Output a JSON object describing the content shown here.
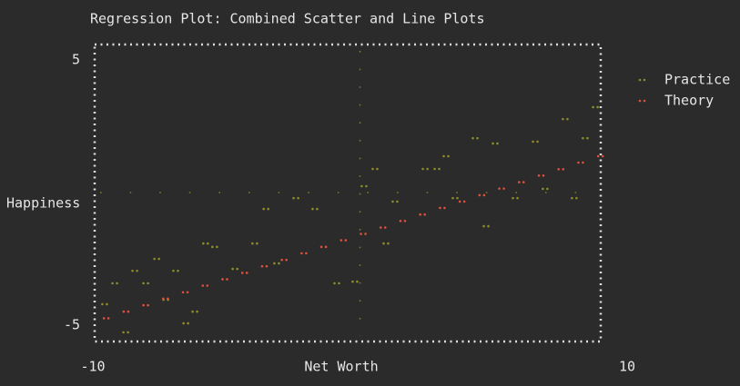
{
  "chart_data": {
    "type": "scatter",
    "title": "Regression Plot: Combined Scatter and Line Plots",
    "x_label": "Net Worth",
    "y_label": "Happiness",
    "xlim": [
      -10,
      10
    ],
    "ylim": [
      -5,
      5
    ],
    "xticks": [
      -10,
      10
    ],
    "yticks": [
      -5,
      5
    ],
    "zero_lines": true,
    "legend": "right",
    "series": [
      {
        "name": "Practice",
        "color": "#8c8c2a",
        "x": [
          -9.56,
          -9.18,
          -8.77,
          -8.43,
          -8.02,
          -7.61,
          -7.27,
          -6.9,
          -6.52,
          -6.18,
          -5.78,
          -5.44,
          -4.68,
          -3.94,
          -3.52,
          -3.12,
          -2.4,
          -1.69,
          -0.87,
          -0.19,
          0.15,
          0.56,
          0.97,
          1.31,
          2.44,
          2.88,
          3.22,
          3.56,
          4.31,
          4.72,
          5.06,
          5.81,
          6.56,
          6.93,
          7.68,
          8.02,
          8.43,
          8.81
        ],
        "values": [
          -4.21,
          -3.42,
          -5.27,
          -2.95,
          -3.42,
          -2.5,
          -4.04,
          -2.95,
          -4.93,
          -4.49,
          -1.92,
          -2.05,
          -2.88,
          -1.92,
          -0.62,
          -2.67,
          -0.21,
          -0.62,
          -3.42,
          -3.36,
          0.24,
          0.89,
          -1.92,
          -0.34,
          0.89,
          0.89,
          1.37,
          -0.21,
          2.05,
          -1.27,
          1.85,
          -0.21,
          1.92,
          0.14,
          2.77,
          -0.21,
          2.05,
          3.22
        ]
      },
      {
        "name": "Theory",
        "color": "#e0503c",
        "x": [
          -9.5,
          -8.76,
          -8.02,
          -7.28,
          -6.54,
          -5.8,
          -5.06,
          -4.32,
          -3.58,
          -2.84,
          -2.1,
          -1.36,
          -0.62,
          0.12,
          0.86,
          1.6,
          2.34,
          3.08,
          3.82,
          4.56,
          5.3,
          6.04,
          6.78,
          7.52,
          8.26,
          9.0
        ],
        "values": [
          -4.74,
          -4.49,
          -4.25,
          -4.0,
          -3.76,
          -3.51,
          -3.27,
          -3.03,
          -2.78,
          -2.54,
          -2.29,
          -2.05,
          -1.8,
          -1.56,
          -1.32,
          -1.07,
          -0.83,
          -0.58,
          -0.34,
          -0.1,
          0.15,
          0.39,
          0.64,
          0.88,
          1.13,
          1.37
        ]
      }
    ]
  }
}
